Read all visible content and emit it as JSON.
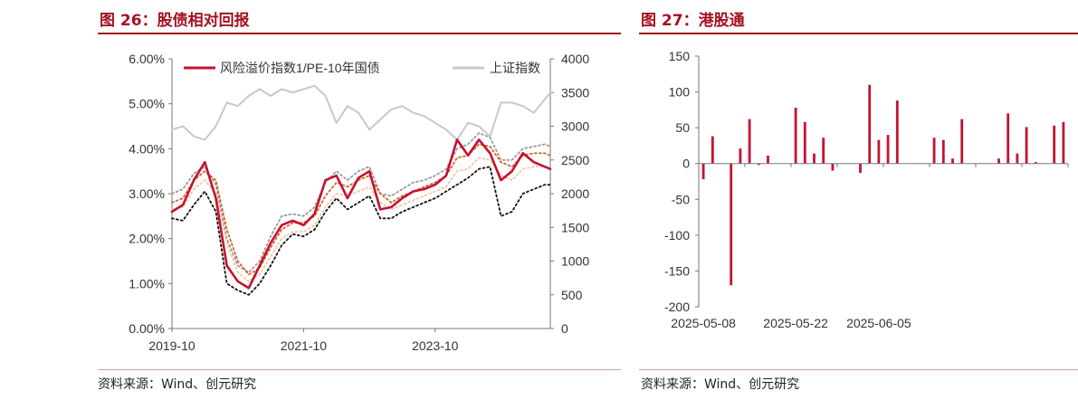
{
  "charts": [
    {
      "figure_title": "图 26：股债相对回报",
      "source": "资料来源：Wind、创元研究"
    },
    {
      "figure_title": "图 27：港股通",
      "source": "资料来源：Wind、创元研究"
    }
  ],
  "chart_data": [
    {
      "type": "line",
      "title": "图 26：股债相对回报",
      "x_ticks": [
        "2019-10",
        "2021-10",
        "2023-10"
      ],
      "x_range": [
        "2019-10",
        "2025-07"
      ],
      "y_left": {
        "ticks": [
          "0.00%",
          "1.00%",
          "2.00%",
          "3.00%",
          "4.00%",
          "5.00%",
          "6.00%"
        ],
        "range": [
          0,
          6
        ]
      },
      "y_right": {
        "ticks": [
          "0",
          "500",
          "1000",
          "1500",
          "2000",
          "2500",
          "3000",
          "3500",
          "4000"
        ],
        "range": [
          0,
          4000
        ]
      },
      "grid": false,
      "legend_position": "top",
      "series": [
        {
          "name": "风险溢价指数1/PE-10年国债",
          "axis": "left",
          "color": "#c8102e",
          "style": "solid",
          "x": [
            "2019-10",
            "2019-12",
            "2020-02",
            "2020-04",
            "2020-06",
            "2020-08",
            "2020-10",
            "2020-12",
            "2021-02",
            "2021-04",
            "2021-06",
            "2021-08",
            "2021-10",
            "2021-12",
            "2022-02",
            "2022-04",
            "2022-06",
            "2022-08",
            "2022-10",
            "2022-12",
            "2023-02",
            "2023-04",
            "2023-06",
            "2023-08",
            "2023-10",
            "2023-12",
            "2024-02",
            "2024-04",
            "2024-06",
            "2024-08",
            "2024-10",
            "2024-12",
            "2025-02",
            "2025-04",
            "2025-06",
            "2025-07"
          ],
          "values": [
            2.6,
            2.75,
            3.3,
            3.7,
            2.9,
            1.4,
            1.05,
            0.9,
            1.4,
            1.9,
            2.3,
            2.4,
            2.3,
            2.55,
            3.3,
            3.4,
            2.9,
            3.35,
            3.5,
            2.65,
            2.7,
            2.9,
            3.05,
            3.1,
            3.2,
            3.4,
            4.2,
            3.85,
            4.2,
            3.9,
            3.3,
            3.5,
            3.9,
            3.7,
            3.6,
            3.55
          ]
        },
        {
          "name": "上证指数",
          "axis": "right",
          "color": "#c8c8c8",
          "style": "solid",
          "x": [
            "2019-10",
            "2019-12",
            "2020-02",
            "2020-04",
            "2020-06",
            "2020-08",
            "2020-10",
            "2020-12",
            "2021-02",
            "2021-04",
            "2021-06",
            "2021-08",
            "2021-10",
            "2021-12",
            "2022-02",
            "2022-04",
            "2022-06",
            "2022-08",
            "2022-10",
            "2022-12",
            "2023-02",
            "2023-04",
            "2023-06",
            "2023-08",
            "2023-10",
            "2023-12",
            "2024-02",
            "2024-04",
            "2024-06",
            "2024-08",
            "2024-10",
            "2024-12",
            "2025-02",
            "2025-04",
            "2025-06",
            "2025-07"
          ],
          "values": [
            2950,
            3000,
            2850,
            2800,
            3000,
            3350,
            3300,
            3450,
            3550,
            3450,
            3550,
            3500,
            3550,
            3600,
            3450,
            3050,
            3300,
            3200,
            2950,
            3100,
            3250,
            3300,
            3200,
            3150,
            3050,
            2950,
            2800,
            3050,
            3000,
            2850,
            3350,
            3350,
            3300,
            3200,
            3400,
            3500
          ]
        },
        {
          "name": "",
          "axis": "left",
          "color": "#9a9a9a",
          "style": "dotted",
          "x": [
            "2019-10",
            "2019-12",
            "2020-02",
            "2020-04",
            "2020-06",
            "2020-08",
            "2020-10",
            "2020-12",
            "2021-02",
            "2021-04",
            "2021-06",
            "2021-08",
            "2021-10",
            "2021-12",
            "2022-02",
            "2022-04",
            "2022-06",
            "2022-08",
            "2022-10",
            "2022-12",
            "2023-02",
            "2023-04",
            "2023-06",
            "2023-08",
            "2023-10",
            "2023-12",
            "2024-02",
            "2024-04",
            "2024-06",
            "2024-08",
            "2024-10",
            "2024-12",
            "2025-02",
            "2025-04",
            "2025-06",
            "2025-07"
          ],
          "values": [
            3.0,
            3.1,
            3.45,
            3.6,
            3.2,
            2.0,
            1.4,
            1.25,
            1.5,
            2.05,
            2.5,
            2.55,
            2.5,
            2.7,
            3.25,
            3.5,
            3.3,
            3.5,
            3.6,
            3.0,
            2.95,
            3.1,
            3.25,
            3.3,
            3.4,
            3.55,
            4.0,
            4.1,
            4.35,
            4.25,
            3.75,
            3.75,
            4.0,
            4.05,
            4.1,
            4.05
          ]
        },
        {
          "name": "",
          "axis": "left",
          "color": "#d4652a",
          "style": "dotted",
          "x": [
            "2019-10",
            "2019-12",
            "2020-02",
            "2020-04",
            "2020-06",
            "2020-08",
            "2020-10",
            "2020-12",
            "2021-02",
            "2021-04",
            "2021-06",
            "2021-08",
            "2021-10",
            "2021-12",
            "2022-02",
            "2022-04",
            "2022-06",
            "2022-08",
            "2022-10",
            "2022-12",
            "2023-02",
            "2023-04",
            "2023-06",
            "2023-08",
            "2023-10",
            "2023-12",
            "2024-02",
            "2024-04",
            "2024-06",
            "2024-08",
            "2024-10",
            "2024-12",
            "2025-02",
            "2025-04",
            "2025-06",
            "2025-07"
          ],
          "values": [
            2.8,
            2.9,
            3.3,
            3.5,
            3.3,
            2.2,
            1.5,
            1.2,
            1.35,
            1.8,
            2.2,
            2.35,
            2.35,
            2.5,
            2.95,
            3.25,
            3.15,
            3.3,
            3.4,
            3.0,
            2.8,
            2.95,
            3.05,
            3.15,
            3.25,
            3.4,
            3.8,
            3.85,
            4.1,
            4.05,
            3.7,
            3.6,
            3.85,
            3.9,
            3.9,
            3.85
          ]
        },
        {
          "name": "",
          "axis": "left",
          "color": "#f2c9a6",
          "style": "dotted",
          "x": [
            "2019-10",
            "2019-12",
            "2020-02",
            "2020-04",
            "2020-06",
            "2020-08",
            "2020-10",
            "2020-12",
            "2021-02",
            "2021-04",
            "2021-06",
            "2021-08",
            "2021-10",
            "2021-12",
            "2022-02",
            "2022-04",
            "2022-06",
            "2022-08",
            "2022-10",
            "2022-12",
            "2023-02",
            "2023-04",
            "2023-06",
            "2023-08",
            "2023-10",
            "2023-12",
            "2024-02",
            "2024-04",
            "2024-06",
            "2024-08",
            "2024-10",
            "2024-12",
            "2025-02",
            "2025-04",
            "2025-06",
            "2025-07"
          ],
          "values": [
            2.65,
            2.7,
            3.1,
            3.3,
            3.0,
            1.9,
            1.25,
            1.05,
            1.2,
            1.6,
            2.0,
            2.15,
            2.15,
            2.3,
            2.7,
            3.0,
            2.95,
            3.05,
            3.15,
            2.8,
            2.65,
            2.75,
            2.85,
            2.95,
            3.05,
            3.15,
            3.5,
            3.55,
            3.8,
            3.75,
            3.4,
            3.3,
            3.55,
            3.6,
            3.6,
            3.55
          ]
        },
        {
          "name": "",
          "axis": "left",
          "color": "#111111",
          "style": "dotted",
          "x": [
            "2019-10",
            "2019-12",
            "2020-02",
            "2020-04",
            "2020-06",
            "2020-08",
            "2020-10",
            "2020-12",
            "2021-02",
            "2021-04",
            "2021-06",
            "2021-08",
            "2021-10",
            "2021-12",
            "2022-02",
            "2022-04",
            "2022-06",
            "2022-08",
            "2022-10",
            "2022-12",
            "2023-02",
            "2023-04",
            "2023-06",
            "2023-08",
            "2023-10",
            "2023-12",
            "2024-02",
            "2024-04",
            "2024-06",
            "2024-08",
            "2024-10",
            "2024-12",
            "2025-02",
            "2025-04",
            "2025-06",
            "2025-07"
          ],
          "values": [
            2.45,
            2.4,
            2.75,
            3.05,
            2.6,
            1.0,
            0.85,
            0.75,
            1.0,
            1.4,
            1.85,
            2.1,
            2.05,
            2.2,
            2.6,
            2.9,
            2.65,
            2.8,
            2.95,
            2.45,
            2.45,
            2.6,
            2.7,
            2.8,
            2.9,
            3.05,
            3.2,
            3.35,
            3.55,
            3.6,
            2.5,
            2.6,
            3.0,
            3.1,
            3.2,
            3.2
          ]
        }
      ]
    },
    {
      "type": "bar",
      "title": "图 27：港股通",
      "x_ticks": [
        "2025-05-08",
        "2025-05-22",
        "2025-06-05"
      ],
      "categories": [
        "2025-05-08",
        "2025-05-09",
        "2025-05-12",
        "2025-05-13",
        "2025-05-14",
        "2025-05-15",
        "2025-05-16",
        "2025-05-19",
        "2025-05-20",
        "2025-05-21",
        "2025-05-22",
        "2025-05-23",
        "2025-05-26",
        "2025-05-27",
        "2025-05-28",
        "2025-05-29",
        "2025-05-30",
        "2025-06-03",
        "2025-06-04",
        "2025-06-05",
        "2025-06-06",
        "2025-06-09",
        "2025-06-10",
        "2025-06-11",
        "2025-06-12",
        "2025-06-13",
        "2025-06-16",
        "2025-06-17",
        "2025-06-18",
        "2025-06-19",
        "2025-06-20",
        "2025-06-23",
        "2025-06-24",
        "2025-06-25",
        "2025-06-26",
        "2025-06-27",
        "2025-06-30",
        "2025-07-02",
        "2025-07-03",
        "2025-07-04"
      ],
      "values": [
        -22,
        38,
        0,
        -170,
        21,
        62,
        -2,
        11,
        0,
        0,
        78,
        58,
        14,
        36,
        -10,
        0,
        0,
        -13,
        110,
        33,
        40,
        88,
        0,
        0,
        0,
        36,
        33,
        7,
        62,
        0,
        0,
        0,
        7,
        70,
        14,
        51,
        2,
        0,
        53,
        58
      ],
      "ylim": [
        -200,
        150
      ],
      "y_ticks": [
        "150",
        "100",
        "50",
        "0",
        "-50",
        "-100",
        "-150",
        "-200"
      ],
      "color": "#c8102e",
      "grid": false
    }
  ]
}
